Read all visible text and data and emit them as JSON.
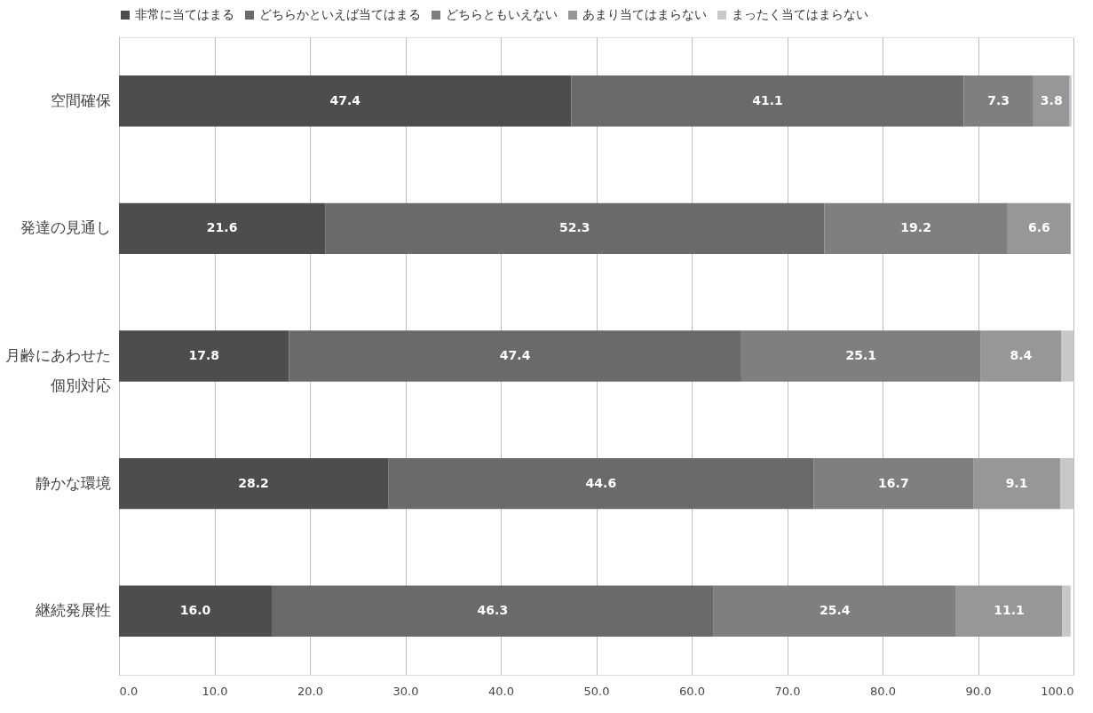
{
  "chart_data": {
    "type": "bar",
    "orientation": "horizontal",
    "stacked": true,
    "categories": [
      "空間確保",
      "発達の見通し",
      "月齢にあわせた個別対応",
      "静かな環境",
      "継続発展性"
    ],
    "series": [
      {
        "name": "非常に当てはまる",
        "color": "#4d4d4f",
        "values": [
          47.4,
          21.6,
          17.8,
          28.2,
          16.0
        ],
        "value_labels": [
          "47.4",
          "21.6",
          "17.8",
          "28.2",
          "16.0"
        ]
      },
      {
        "name": "どちらかといえば当てはまる",
        "color": "#6a6a6c",
        "values": [
          41.1,
          52.3,
          47.4,
          44.6,
          46.3
        ],
        "value_labels": [
          "41.1",
          "52.3",
          "47.4",
          "44.6",
          "46.3"
        ]
      },
      {
        "name": "どちらともいえない",
        "color": "#7f7f82",
        "values": [
          7.3,
          19.2,
          25.1,
          16.7,
          25.4
        ],
        "value_labels": [
          "7.3",
          "19.2",
          "25.1",
          "16.7",
          "25.4"
        ]
      },
      {
        "name": "あまり当てはまらない",
        "color": "#97979a",
        "values": [
          3.8,
          6.6,
          8.4,
          9.1,
          11.1
        ],
        "value_labels": [
          "3.8",
          "6.6",
          "8.4",
          "9.1",
          "11.1"
        ]
      },
      {
        "name": "まったく当てはまらない",
        "color": "#c8c8ca",
        "values": [
          0.2,
          null,
          1.3,
          1.4,
          0.9
        ],
        "value_labels": [
          null,
          null,
          null,
          null,
          null
        ]
      }
    ],
    "xlim": [
      0,
      100
    ],
    "xticks": [
      {
        "value": 0,
        "label": "0.0"
      },
      {
        "value": 10,
        "label": "10.0"
      },
      {
        "value": 20,
        "label": "20.0"
      },
      {
        "value": 30,
        "label": "30.0"
      },
      {
        "value": 40,
        "label": "40.0"
      },
      {
        "value": 50,
        "label": "50.0"
      },
      {
        "value": 60,
        "label": "60.0"
      },
      {
        "value": 70,
        "label": "70.0"
      },
      {
        "value": 80,
        "label": "80.0"
      },
      {
        "value": 90,
        "label": "90.0"
      },
      {
        "value": 100,
        "label": "100.0"
      }
    ],
    "grid": "x",
    "legend": "top"
  }
}
